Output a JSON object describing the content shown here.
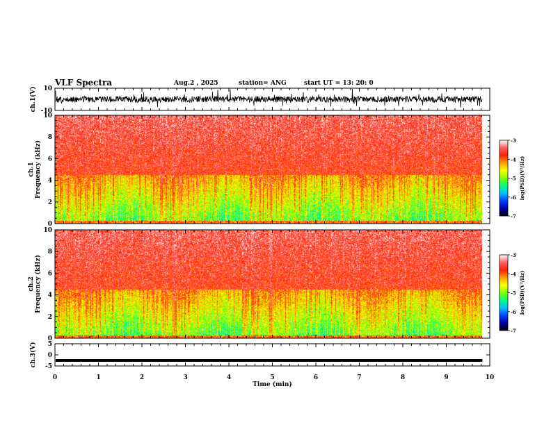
{
  "header": {
    "title": "VLF Spectra",
    "date": "Aug.2 , 2025",
    "station": "station= ANG",
    "start": "start UT = 13: 20: 0"
  },
  "chart_data": [
    {
      "type": "line",
      "name": "ch1-waveform",
      "ylabel": "ch.1(V)",
      "ylim": [
        -10,
        10
      ],
      "yticks": [
        {
          "v": 10,
          "label": "10"
        },
        {
          "v": -10,
          "label": "-10"
        }
      ],
      "xlim": [
        0,
        10
      ],
      "data_end_min": 9.83,
      "note": "dense noisy voltage trace roughly between -6 V and +6 V"
    },
    {
      "type": "heatmap",
      "name": "ch1-spectrogram",
      "ylabel": "ch.1\nFrequency (kHz)",
      "ylim": [
        0,
        10
      ],
      "yticks": [
        "0",
        "2",
        "4",
        "6",
        "8",
        "10"
      ],
      "xlim": [
        0,
        10
      ],
      "data_end_min": 9.83,
      "colorbar": {
        "label": "log(PSD)(V²/Hz)",
        "min": -7,
        "max": -3,
        "ticks": [
          "-3",
          "-4",
          "-5",
          "-6",
          "-7"
        ]
      }
    },
    {
      "type": "heatmap",
      "name": "ch2-spectrogram",
      "ylabel": "ch.2\nFrequency (kHz)",
      "ylim": [
        0,
        10
      ],
      "yticks": [
        "0",
        "2",
        "4",
        "6",
        "8",
        "10"
      ],
      "xlim": [
        0,
        10
      ],
      "data_end_min": 9.83,
      "colorbar": {
        "label": "log(PSD)(V²/Hz)",
        "min": -7,
        "max": -3,
        "ticks": [
          "-3",
          "-4",
          "-5",
          "-6",
          "-7"
        ]
      }
    },
    {
      "type": "line",
      "name": "ch3-waveform",
      "ylabel": "ch.3(V)",
      "ylim": [
        -5,
        5
      ],
      "yticks": [
        {
          "v": 5,
          "label": "5"
        },
        {
          "v": 0,
          "label": "0"
        },
        {
          "v": -5,
          "label": "-5"
        }
      ],
      "xlim": [
        0,
        10
      ],
      "data_end_min": 9.83,
      "level": -2.5
    }
  ],
  "xaxis": {
    "label": "Time (min)",
    "ticks": [
      "0",
      "1",
      "2",
      "3",
      "4",
      "5",
      "6",
      "7",
      "8",
      "9",
      "10"
    ]
  },
  "colors": {
    "trace": "#000000",
    "cmap": [
      "#000000",
      "#0000aa",
      "#0040ff",
      "#00c0ff",
      "#00ff80",
      "#80ff00",
      "#ffff00",
      "#ffa000",
      "#ff2000",
      "#ff6060",
      "#ffffff"
    ]
  }
}
